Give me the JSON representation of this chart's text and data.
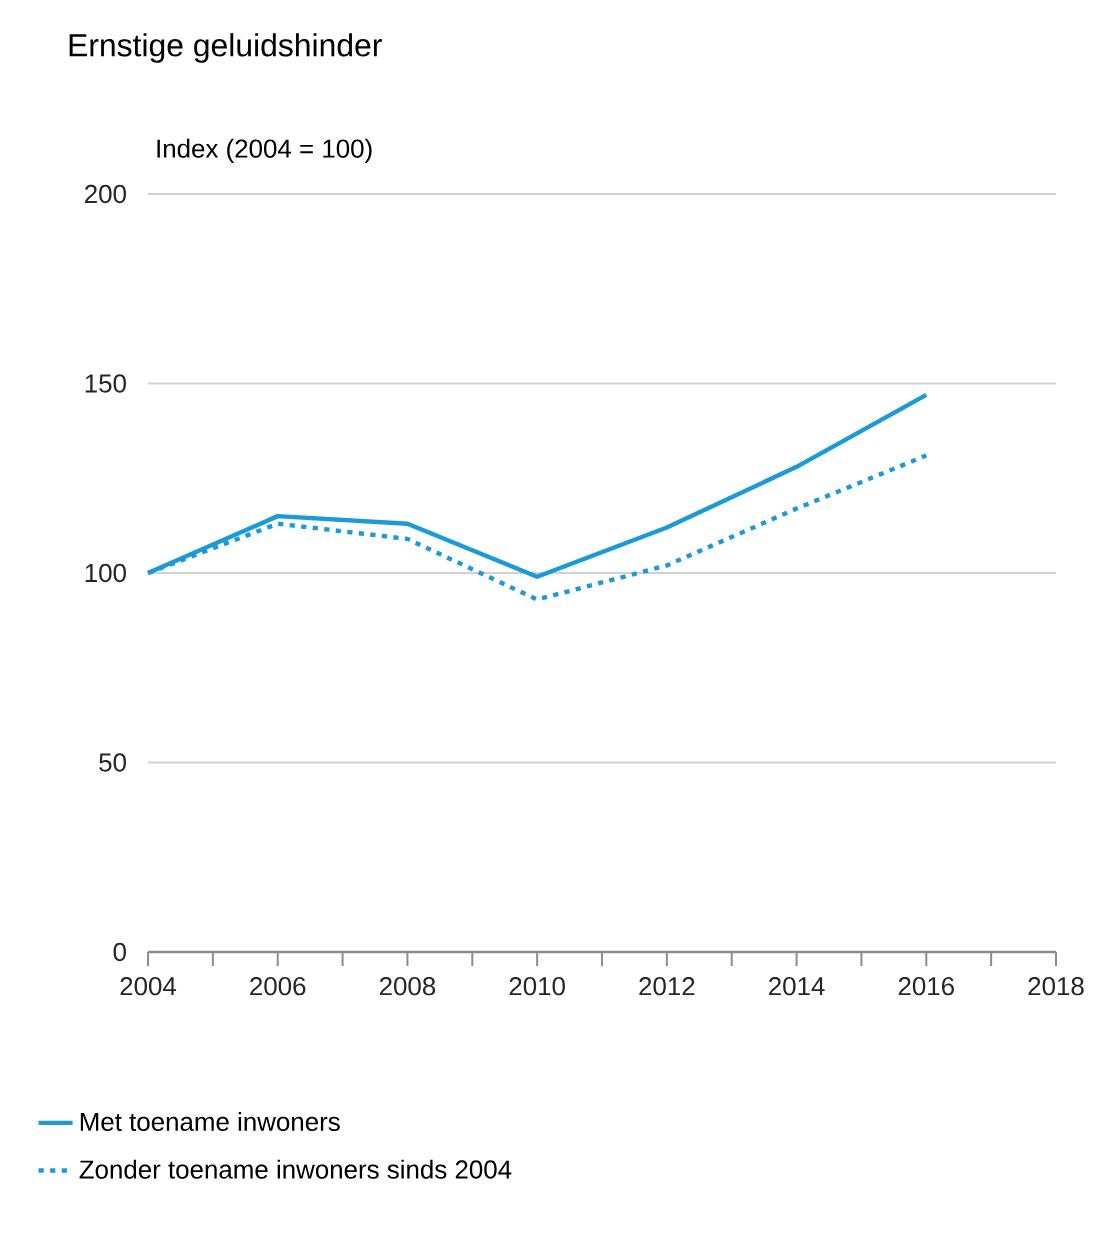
{
  "chart_data": {
    "type": "line",
    "title": "Ernstige geluidshinder",
    "ylabel": "Index (2004 = 100)",
    "x": [
      2004,
      2006,
      2008,
      2010,
      2012,
      2014,
      2016
    ],
    "series": [
      {
        "name": "Met toename inwoners",
        "color": "#1a9ad6",
        "line_style": "solid",
        "values": [
          100,
          115,
          113,
          99,
          112,
          128,
          147
        ]
      },
      {
        "name": "Zonder toename inwoners sinds 2004",
        "color": "#1a9ad6",
        "line_style": "dotted",
        "values": [
          100,
          113,
          109,
          93,
          102,
          117,
          131
        ]
      }
    ],
    "xlim": [
      2004,
      2018
    ],
    "xticks": [
      2004,
      {
        "value": 2005,
        "label": null
      },
      2006,
      {
        "value": 2007,
        "label": null
      },
      2008,
      {
        "value": 2009,
        "label": null
      },
      2010,
      {
        "value": 2011,
        "label": null
      },
      2012,
      {
        "value": 2013,
        "label": null
      },
      2014,
      {
        "value": 2015,
        "label": null
      },
      2016,
      {
        "value": 2017,
        "label": null
      },
      2018
    ],
    "ylim": [
      0,
      200
    ],
    "yticks": [
      0,
      50,
      100,
      150,
      200
    ],
    "grid": "y",
    "legend": "bottom",
    "marker": "none"
  }
}
